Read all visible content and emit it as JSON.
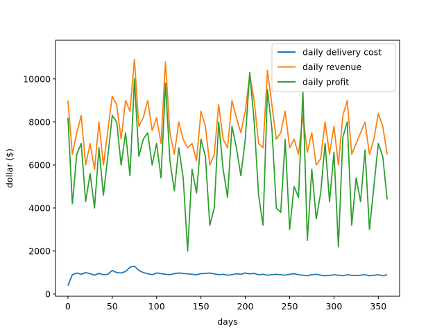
{
  "chart_data": {
    "type": "line",
    "xlabel": "days",
    "ylabel": "dollar ($)",
    "xlim": [
      -14,
      374
    ],
    "ylim": [
      -100,
      11800
    ],
    "x_ticks": [
      0,
      50,
      100,
      150,
      200,
      250,
      300,
      350
    ],
    "y_ticks": [
      0,
      2000,
      4000,
      6000,
      8000,
      10000
    ],
    "grid": false,
    "legend_position": "top-right",
    "legend_entries": [
      "daily delivery cost",
      "daily revenue",
      "daily profit"
    ],
    "series": [
      {
        "name": "daily delivery cost",
        "color": "#1f77b4",
        "x_start": 0,
        "x_step": 5,
        "values": [
          400,
          900,
          980,
          920,
          1000,
          950,
          880,
          960,
          900,
          920,
          1100,
          1000,
          980,
          1050,
          1250,
          1300,
          1100,
          1000,
          950,
          900,
          980,
          950,
          920,
          900,
          950,
          980,
          960,
          940,
          920,
          900,
          950,
          960,
          980,
          940,
          900,
          920,
          880,
          900,
          950,
          920,
          980,
          940,
          960,
          900,
          920,
          880,
          900,
          920,
          900,
          880,
          920,
          950,
          900,
          880,
          850,
          900,
          920,
          880,
          850,
          870,
          900,
          880,
          850,
          900,
          870,
          860,
          880,
          900,
          850,
          880,
          900,
          850,
          900
        ]
      },
      {
        "name": "daily revenue",
        "color": "#ff7f0e",
        "x_start": 0,
        "x_step": 5,
        "values": [
          9000,
          6500,
          7500,
          8300,
          6000,
          7000,
          5800,
          8000,
          6000,
          7600,
          9200,
          8800,
          7200,
          9000,
          8500,
          10900,
          7800,
          8200,
          9000,
          7600,
          8200,
          7000,
          10800,
          7500,
          6500,
          8000,
          7200,
          6800,
          7000,
          6200,
          8500,
          7800,
          6000,
          6500,
          8800,
          7200,
          6800,
          9000,
          8200,
          7500,
          8500,
          10200,
          9000,
          7000,
          6800,
          10400,
          8800,
          7200,
          7500,
          8500,
          6800,
          7200,
          6500,
          8300,
          6600,
          7500,
          6000,
          6300,
          8000,
          6500,
          7800,
          6000,
          8300,
          9000,
          6500,
          7000,
          7500,
          8000,
          6500,
          7200,
          8400,
          7800,
          6500
        ]
      },
      {
        "name": "daily profit",
        "color": "#2ca02c",
        "x_start": 0,
        "x_step": 5,
        "values": [
          8200,
          4200,
          6500,
          7000,
          4300,
          5600,
          4000,
          6800,
          4600,
          6400,
          8300,
          8000,
          6000,
          7500,
          5500,
          10000,
          6400,
          7200,
          7500,
          6000,
          7000,
          5400,
          9800,
          6200,
          4800,
          6800,
          5400,
          2000,
          5800,
          4700,
          7200,
          6400,
          3200,
          4000,
          8000,
          5800,
          4500,
          7800,
          6800,
          5500,
          7200,
          10300,
          8000,
          4600,
          3200,
          9500,
          7700,
          4000,
          3800,
          7200,
          3000,
          5000,
          4500,
          9400,
          2500,
          5800,
          3500,
          4700,
          7000,
          4300,
          6600,
          2200,
          7300,
          8000,
          3200,
          5400,
          4300,
          6700,
          3000,
          5000,
          7000,
          6400,
          4400
        ]
      }
    ]
  }
}
